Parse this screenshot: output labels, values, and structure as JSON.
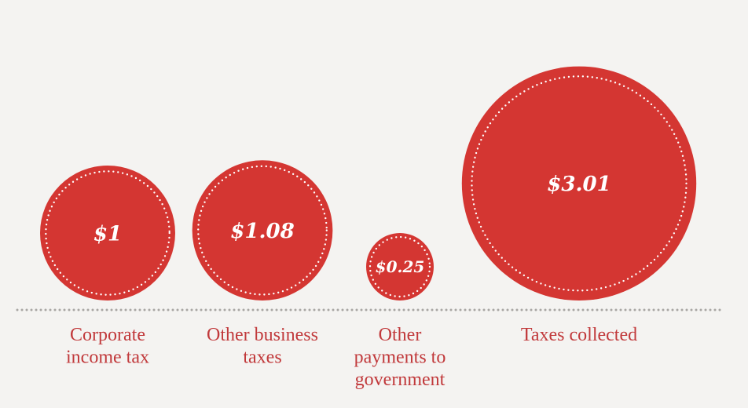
{
  "chart_data": {
    "type": "bubble",
    "title": "",
    "categories": [
      [
        "Corporate",
        "income tax"
      ],
      [
        "Other business",
        "taxes"
      ],
      [
        "Other",
        "payments to",
        "government"
      ],
      [
        "Taxes collected"
      ]
    ],
    "values": [
      1,
      1.08,
      0.25,
      3.01
    ],
    "value_labels": [
      "$1",
      "$1.08",
      "$0.25",
      "$3.01"
    ],
    "colors": {
      "bubble": "#d43632",
      "label": "#c1393b",
      "baseline_dots": "#a8a6a3",
      "background": "#f4f3f1"
    }
  }
}
